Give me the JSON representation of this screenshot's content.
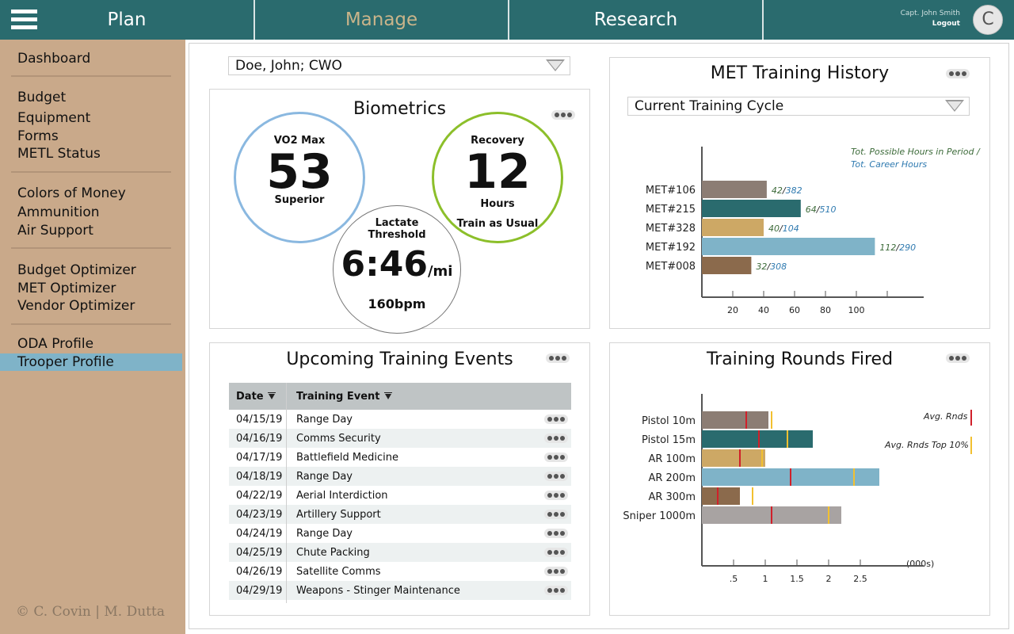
{
  "nav": {
    "tabs": [
      {
        "label": "Plan",
        "active": false
      },
      {
        "label": "Manage",
        "active": true
      },
      {
        "label": "Research",
        "active": false
      }
    ],
    "user_name": "Capt. John Smith",
    "logout_label": "Logout",
    "avatar_initial": "C"
  },
  "sidebar": {
    "items": [
      {
        "label": "Dashboard"
      },
      {
        "label": "Budget"
      },
      {
        "label": "Equipment"
      },
      {
        "label": "Forms"
      },
      {
        "label": "METL Status"
      },
      {
        "label": "Colors of Money"
      },
      {
        "label": "Ammunition"
      },
      {
        "label": "Air Support"
      },
      {
        "label": "Budget Optimizer"
      },
      {
        "label": "MET Optimizer"
      },
      {
        "label": "Vendor Optimizer"
      },
      {
        "label": "ODA Profile"
      },
      {
        "label": "Trooper Profile",
        "active": true
      }
    ],
    "copyright": "© C. Covin | M. Dutta"
  },
  "trooper_select": {
    "value": "Doe, John; CWO"
  },
  "biometrics": {
    "title": "Biometrics",
    "vo2": {
      "label": "VO2 Max",
      "value": "53",
      "rating": "Superior",
      "color": "#8ab8e0"
    },
    "recovery": {
      "label": "Recovery",
      "value": "12",
      "unit": "Hours",
      "advice": "Train as Usual",
      "color": "#8cbf2a"
    },
    "lactate": {
      "label_line1": "Lactate",
      "label_line2": "Threshold",
      "pace": "6:46",
      "pace_unit": "/mi",
      "bpm": "160bpm"
    }
  },
  "met_history": {
    "title": "MET Training History",
    "filter_value": "Current Training Cycle",
    "legend_line1": "Tot. Possible Hours in Period /",
    "legend_line2": "Tot. Career Hours"
  },
  "events": {
    "title": "Upcoming Training Events",
    "col_date": "Date",
    "col_event": "Training Event",
    "rows": [
      {
        "date": "04/15/19",
        "event": "Range Day"
      },
      {
        "date": "04/16/19",
        "event": "Comms Security"
      },
      {
        "date": "04/17/19",
        "event": "Battlefield Medicine"
      },
      {
        "date": "04/18/19",
        "event": "Range Day"
      },
      {
        "date": "04/22/19",
        "event": "Aerial Interdiction"
      },
      {
        "date": "04/23/19",
        "event": "Artillery Support"
      },
      {
        "date": "04/24/19",
        "event": "Range Day"
      },
      {
        "date": "04/25/19",
        "event": "Chute Packing"
      },
      {
        "date": "04/26/19",
        "event": "Satellite Comms"
      },
      {
        "date": "04/29/19",
        "event": "Weapons - Stinger Maintenance"
      }
    ]
  },
  "rounds": {
    "title": "Training Rounds Fired",
    "legend_avg": "Avg. Rnds",
    "legend_top": "Avg. Rnds Top 10%",
    "avg_color": "#d0202a",
    "top_color": "#f2c030",
    "x_unit_label": "(000s)"
  },
  "chart_data": [
    {
      "type": "bar",
      "orientation": "horizontal",
      "categories": [
        "MET#106",
        "MET#215",
        "MET#328",
        "MET#192",
        "MET#008"
      ],
      "values": [
        42,
        64,
        40,
        112,
        32
      ],
      "career_hours": [
        382,
        510,
        104,
        290,
        308
      ],
      "colors": [
        "#8c7d74",
        "#2a6b6e",
        "#cda865",
        "#7fb3c8",
        "#8b6a4c"
      ],
      "x_ticks": [
        "20",
        "40",
        "60",
        "80",
        "100"
      ],
      "xlim": [
        0,
        120
      ]
    },
    {
      "type": "bar",
      "orientation": "horizontal",
      "categories": [
        "Pistol 10m",
        "Pistol 15m",
        "AR 100m",
        "AR 200m",
        "AR 300m",
        "Sniper 1000m"
      ],
      "values": [
        1.05,
        1.75,
        1.0,
        2.8,
        0.6,
        2.2
      ],
      "avg_rounds": [
        0.7,
        0.9,
        0.6,
        1.4,
        0.25,
        1.1
      ],
      "avg_top10": [
        1.1,
        1.35,
        0.95,
        2.4,
        0.8,
        2.0
      ],
      "colors": [
        "#8c7d74",
        "#2a6b6e",
        "#cda865",
        "#7fb3c8",
        "#8b6a4c",
        "#a8a3a2"
      ],
      "x_ticks": [
        ".5",
        "1",
        "1.5",
        "2",
        "2.5"
      ],
      "xlim": [
        0,
        3.0
      ]
    }
  ]
}
